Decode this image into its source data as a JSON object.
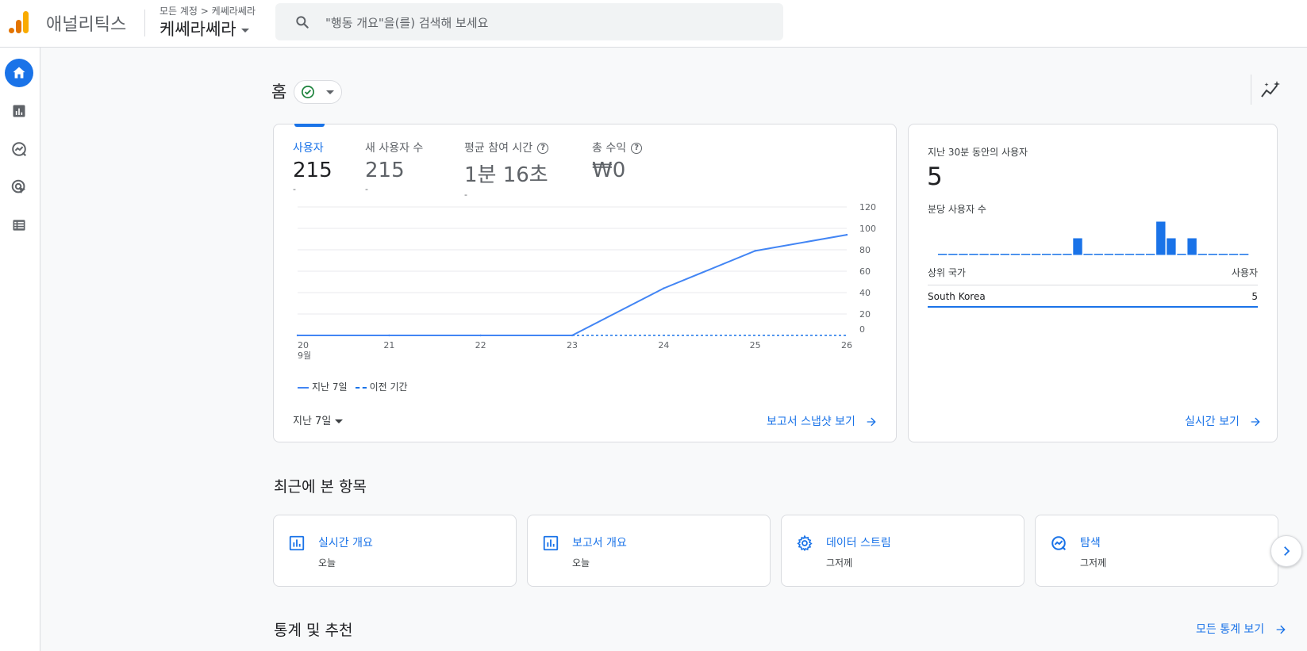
{
  "app": {
    "name": "애널리틱스",
    "breadcrumb": "모든 계정 > 케쎄라쎄라",
    "property": "케쎄라쎄라"
  },
  "search": {
    "placeholder": "\"행동 개요\"을(를) 검색해 보세요"
  },
  "sidebar": {
    "icons": [
      "home-icon",
      "reports-icon",
      "explore-icon",
      "advertising-icon",
      "configure-icon"
    ],
    "active": "home-icon"
  },
  "page": {
    "title": "홈"
  },
  "metrics": [
    {
      "label": "사용자",
      "value": "215",
      "delta": "-",
      "active": true
    },
    {
      "label": "새 사용자 수",
      "value": "215",
      "delta": "-",
      "active": false
    },
    {
      "label": "평균 참여 시간",
      "value": "1분 16초",
      "delta": "-",
      "active": false
    },
    {
      "label": "총 수익",
      "value": "₩0",
      "delta": "",
      "active": false
    }
  ],
  "chart_data": {
    "type": "line",
    "x": [
      "20",
      "21",
      "22",
      "23",
      "24",
      "25",
      "26"
    ],
    "x_sublabel": "9월",
    "y_ticks": [
      0,
      20,
      40,
      60,
      80,
      100,
      120
    ],
    "ylim": [
      0,
      120
    ],
    "series": [
      {
        "name": "지난 7일",
        "values": [
          0,
          0,
          0,
          0,
          44,
          79,
          94
        ],
        "style": "solid",
        "color": "#4285f4"
      },
      {
        "name": "이전 기간",
        "values": [
          0,
          0,
          0,
          0,
          0,
          0,
          0
        ],
        "style": "dashed",
        "color": "#1a73e8"
      }
    ]
  },
  "range": {
    "label": "지난 7일"
  },
  "links": {
    "snapshot": "보고서 스냅샷 보기",
    "realtime": "실시간 보기",
    "all_insights": "모든 통계 보기"
  },
  "realtime": {
    "label": "지난 30분 동안의 사용자",
    "value": "5",
    "per_minute_label": "분당 사용자 수",
    "per_minute": [
      0,
      0,
      0,
      0,
      0,
      0,
      0,
      0,
      0,
      0,
      0,
      0,
      0,
      1,
      0,
      0,
      0,
      0,
      0,
      0,
      0,
      2,
      1,
      0,
      1,
      0,
      0,
      0,
      0,
      0
    ],
    "table": {
      "col1": "상위 국가",
      "col2": "사용자",
      "rows": [
        {
          "country": "South Korea",
          "users": "5"
        }
      ]
    }
  },
  "recent": {
    "title": "최근에 본 항목",
    "items": [
      {
        "title": "실시간 개요",
        "sub": "오늘",
        "icon": "bar-chart-icon"
      },
      {
        "title": "보고서 개요",
        "sub": "오늘",
        "icon": "bar-chart-icon"
      },
      {
        "title": "데이터 스트림",
        "sub": "그저께",
        "icon": "gear-icon"
      },
      {
        "title": "탐색",
        "sub": "그저께",
        "icon": "explore-icon"
      }
    ]
  },
  "insights": {
    "title": "통계 및 추천"
  },
  "colors": {
    "accent": "#1a73e8",
    "logo_orange": "#f9ab00",
    "logo_dark_orange": "#e37400",
    "success": "#188038"
  }
}
